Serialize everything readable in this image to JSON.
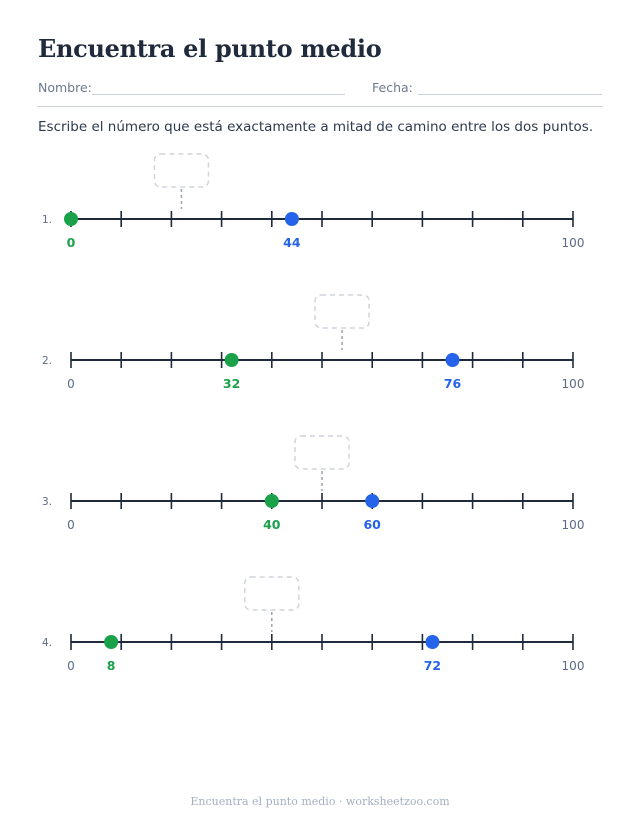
{
  "worksheet": {
    "title": "Encuentra el punto medio",
    "name_label": "Nombre:",
    "date_label": "Fecha:",
    "instructions": "Escribe el número que está exactamente a mitad de camino entre los dos puntos.",
    "footer": "Encuentra el punto medio · worksheetzoo.com"
  },
  "number_line": {
    "min": 0,
    "max": 100,
    "tick_step": 10,
    "min_label": "0",
    "max_label": "100"
  },
  "colors": {
    "start_point": "#1aa14a",
    "end_point": "#2563eb",
    "line": "#1f2a3c",
    "axis_label": "#5a6b85",
    "answer_box": "#cfd4dc"
  },
  "problems": [
    {
      "number": "1.",
      "a": 0,
      "b": 44,
      "a_label": "0",
      "b_label": "44"
    },
    {
      "number": "2.",
      "a": 32,
      "b": 76,
      "a_label": "32",
      "b_label": "76"
    },
    {
      "number": "3.",
      "a": 40,
      "b": 60,
      "a_label": "40",
      "b_label": "60"
    },
    {
      "number": "4.",
      "a": 8,
      "b": 72,
      "a_label": "8",
      "b_label": "72"
    }
  ]
}
